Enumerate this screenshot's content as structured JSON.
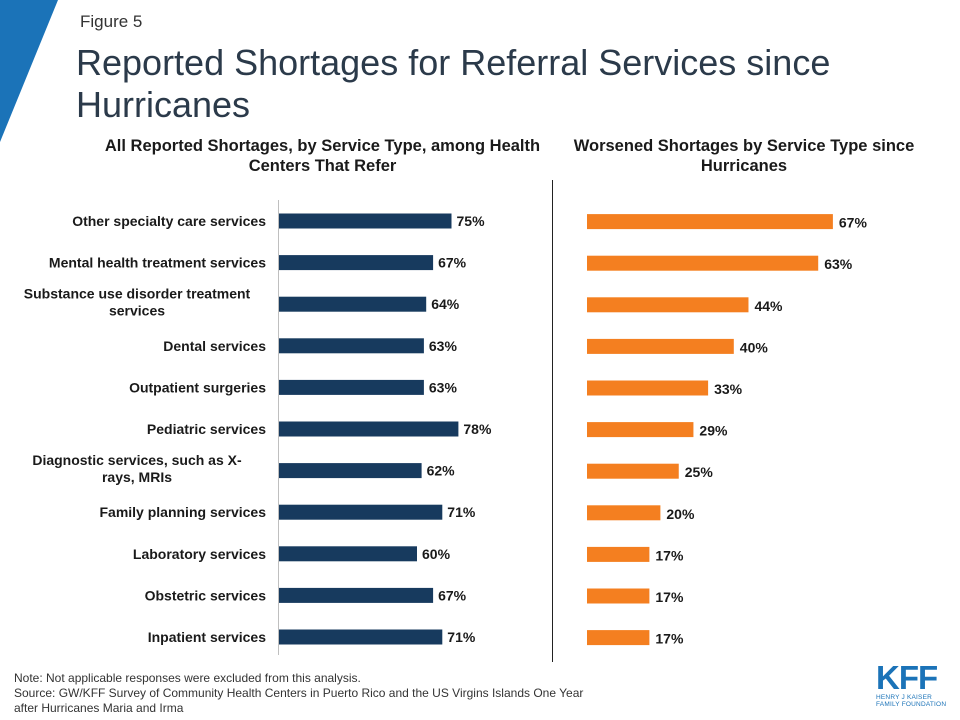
{
  "figure_label": "Figure 5",
  "title": "Reported Shortages for Referral Services since Hurricanes",
  "colors": {
    "left_bars": "#173a5e",
    "right_bars": "#f47f20",
    "corner": "#1b73b8",
    "title": "#2b3a4a"
  },
  "chart_data": [
    {
      "type": "bar",
      "orientation": "horizontal",
      "title": "All Reported Shortages, by Service Type, among Health Centers That Refer",
      "categories": [
        "Other specialty care services",
        "Mental health treatment services",
        "Substance use disorder treatment services",
        "Dental services",
        "Outpatient surgeries",
        "Pediatric services",
        "Diagnostic services, such as X-rays, MRIs",
        "Family planning services",
        "Laboratory services",
        "Obstetric services",
        "Inpatient services"
      ],
      "category_lines": [
        [
          "Other specialty care services"
        ],
        [
          "Mental health treatment services"
        ],
        [
          "Substance use disorder treatment",
          "services"
        ],
        [
          "Dental services"
        ],
        [
          "Outpatient surgeries"
        ],
        [
          "Pediatric services"
        ],
        [
          "Diagnostic services, such as X-",
          "rays, MRIs"
        ],
        [
          "Family planning services"
        ],
        [
          "Laboratory services"
        ],
        [
          "Obstetric services"
        ],
        [
          "Inpatient services"
        ]
      ],
      "values": [
        75,
        67,
        64,
        63,
        63,
        78,
        62,
        71,
        60,
        67,
        71
      ],
      "value_labels": [
        "75%",
        "67%",
        "64%",
        "63%",
        "63%",
        "78%",
        "62%",
        "71%",
        "60%",
        "67%",
        "71%"
      ],
      "unit": "%",
      "xlim": [
        0,
        100
      ],
      "grid": false
    },
    {
      "type": "bar",
      "orientation": "horizontal",
      "title": "Worsened Shortages by Service Type since Hurricanes",
      "values": [
        67,
        63,
        44,
        40,
        33,
        29,
        25,
        20,
        17,
        17,
        17
      ],
      "value_labels": [
        "67%",
        "63%",
        "44%",
        "40%",
        "33%",
        "29%",
        "25%",
        "20%",
        "17%",
        "17%",
        "17%"
      ],
      "unit": "%",
      "xlim": [
        0,
        100
      ],
      "grid": false
    }
  ],
  "note_lines": [
    "Note: Not applicable responses were  excluded from this analysis.",
    "Source: GW/KFF Survey of Community Health Centers in Puerto Rico and the US Virgins Islands One Year",
    "after Hurricanes Maria and Irma"
  ],
  "logo": {
    "mark": "KFF",
    "line1": "HENRY J KAISER",
    "line2": "FAMILY FOUNDATION"
  }
}
